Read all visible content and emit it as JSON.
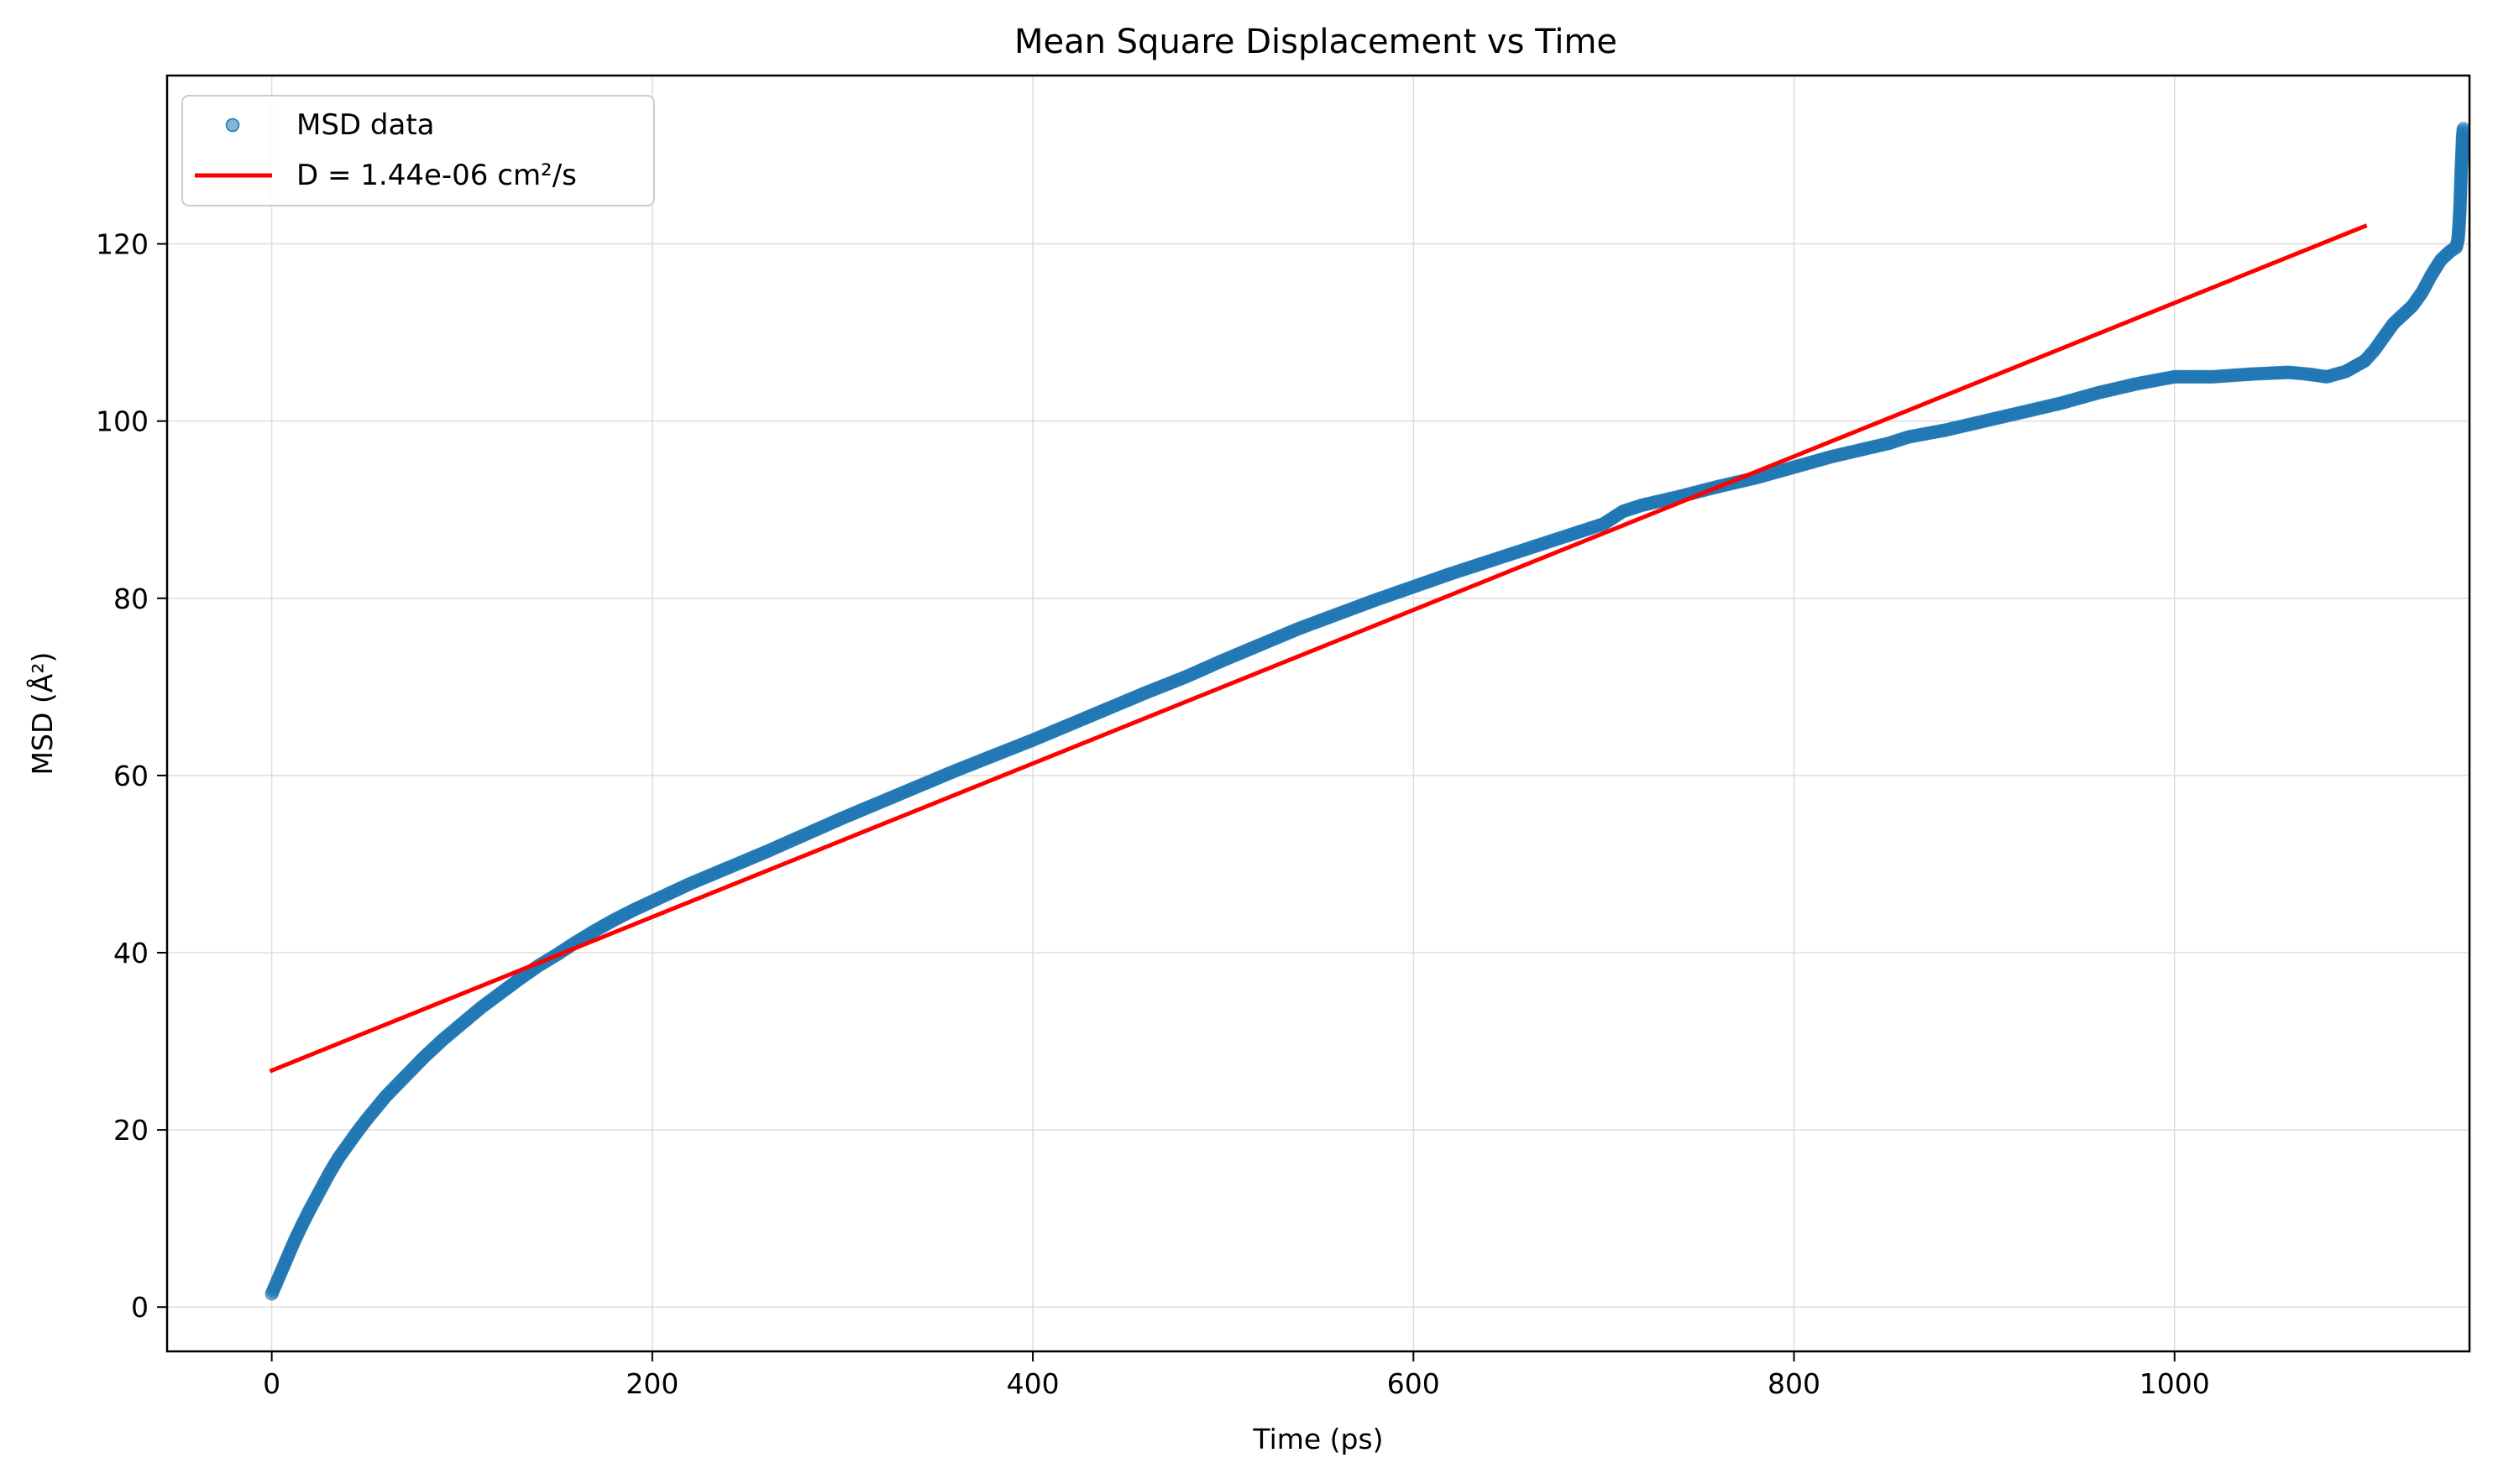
{
  "chart_data": {
    "type": "scatter",
    "title": "Mean Square Displacement vs Time",
    "xlabel": "Time (ps)",
    "ylabel": "MSD (Å²)",
    "xlim": [
      -55,
      1155
    ],
    "ylim": [
      -5,
      139
    ],
    "xticks": [
      0,
      200,
      400,
      600,
      800,
      1000
    ],
    "yticks": [
      0,
      20,
      40,
      60,
      80,
      100,
      120
    ],
    "grid": true,
    "legend_position": "top-left",
    "colors": {
      "scatter": "#1f77b4",
      "fit": "#ff0000",
      "grid": "#dddddd"
    },
    "series": [
      {
        "name": "MSD data",
        "kind": "scatter",
        "points": [
          [
            0,
            1.5
          ],
          [
            2,
            2.5
          ],
          [
            5,
            4
          ],
          [
            8,
            5.5
          ],
          [
            12,
            7.5
          ],
          [
            16,
            9.3
          ],
          [
            20,
            11
          ],
          [
            25,
            13
          ],
          [
            30,
            15
          ],
          [
            35,
            16.8
          ],
          [
            40,
            18.3
          ],
          [
            45,
            19.8
          ],
          [
            50,
            21.2
          ],
          [
            60,
            23.8
          ],
          [
            70,
            26
          ],
          [
            80,
            28.2
          ],
          [
            90,
            30.2
          ],
          [
            100,
            32
          ],
          [
            110,
            33.8
          ],
          [
            120,
            35.4
          ],
          [
            130,
            37
          ],
          [
            140,
            38.5
          ],
          [
            150,
            39.8
          ],
          [
            160,
            41.2
          ],
          [
            170,
            42.5
          ],
          [
            180,
            43.7
          ],
          [
            190,
            44.8
          ],
          [
            200,
            45.8
          ],
          [
            220,
            47.8
          ],
          [
            240,
            49.6
          ],
          [
            260,
            51.4
          ],
          [
            280,
            53.3
          ],
          [
            300,
            55.2
          ],
          [
            320,
            57
          ],
          [
            340,
            58.8
          ],
          [
            360,
            60.6
          ],
          [
            380,
            62.3
          ],
          [
            400,
            64
          ],
          [
            420,
            65.8
          ],
          [
            440,
            67.6
          ],
          [
            460,
            69.4
          ],
          [
            480,
            71.1
          ],
          [
            500,
            73
          ],
          [
            520,
            74.8
          ],
          [
            540,
            76.6
          ],
          [
            560,
            78.2
          ],
          [
            580,
            79.8
          ],
          [
            600,
            81.3
          ],
          [
            620,
            82.8
          ],
          [
            640,
            84.2
          ],
          [
            660,
            85.6
          ],
          [
            680,
            87
          ],
          [
            700,
            88.4
          ],
          [
            710,
            89.8
          ],
          [
            720,
            90.5
          ],
          [
            740,
            91.5
          ],
          [
            760,
            92.6
          ],
          [
            780,
            93.6
          ],
          [
            800,
            94.8
          ],
          [
            820,
            96
          ],
          [
            840,
            97
          ],
          [
            850,
            97.5
          ],
          [
            860,
            98.2
          ],
          [
            880,
            99
          ],
          [
            900,
            100
          ],
          [
            920,
            101
          ],
          [
            940,
            102
          ],
          [
            960,
            103.2
          ],
          [
            980,
            104.2
          ],
          [
            1000,
            105
          ],
          [
            1020,
            105
          ],
          [
            1040,
            105.3
          ],
          [
            1060,
            105.5
          ],
          [
            1070,
            105.3
          ],
          [
            1080,
            105
          ],
          [
            1090,
            105.6
          ],
          [
            1095,
            106.2
          ],
          [
            1100,
            106.8
          ],
          [
            1105,
            108
          ],
          [
            1110,
            109.5
          ],
          [
            1115,
            111
          ],
          [
            1120,
            112
          ],
          [
            1125,
            113
          ],
          [
            1130,
            114.5
          ],
          [
            1135,
            116.5
          ],
          [
            1140,
            118.2
          ],
          [
            1145,
            119.2
          ],
          [
            1148,
            119.6
          ],
          [
            1149,
            120.5
          ],
          [
            1149.5,
            122
          ],
          [
            1150,
            124
          ],
          [
            1150.3,
            126
          ],
          [
            1150.6,
            128
          ],
          [
            1151,
            130
          ],
          [
            1151.4,
            132
          ],
          [
            1151.8,
            133
          ]
        ]
      },
      {
        "name": "D = 1.44e-06 cm²/s",
        "kind": "line",
        "points": [
          [
            0,
            26.7
          ],
          [
            1100,
            122
          ]
        ]
      }
    ]
  }
}
